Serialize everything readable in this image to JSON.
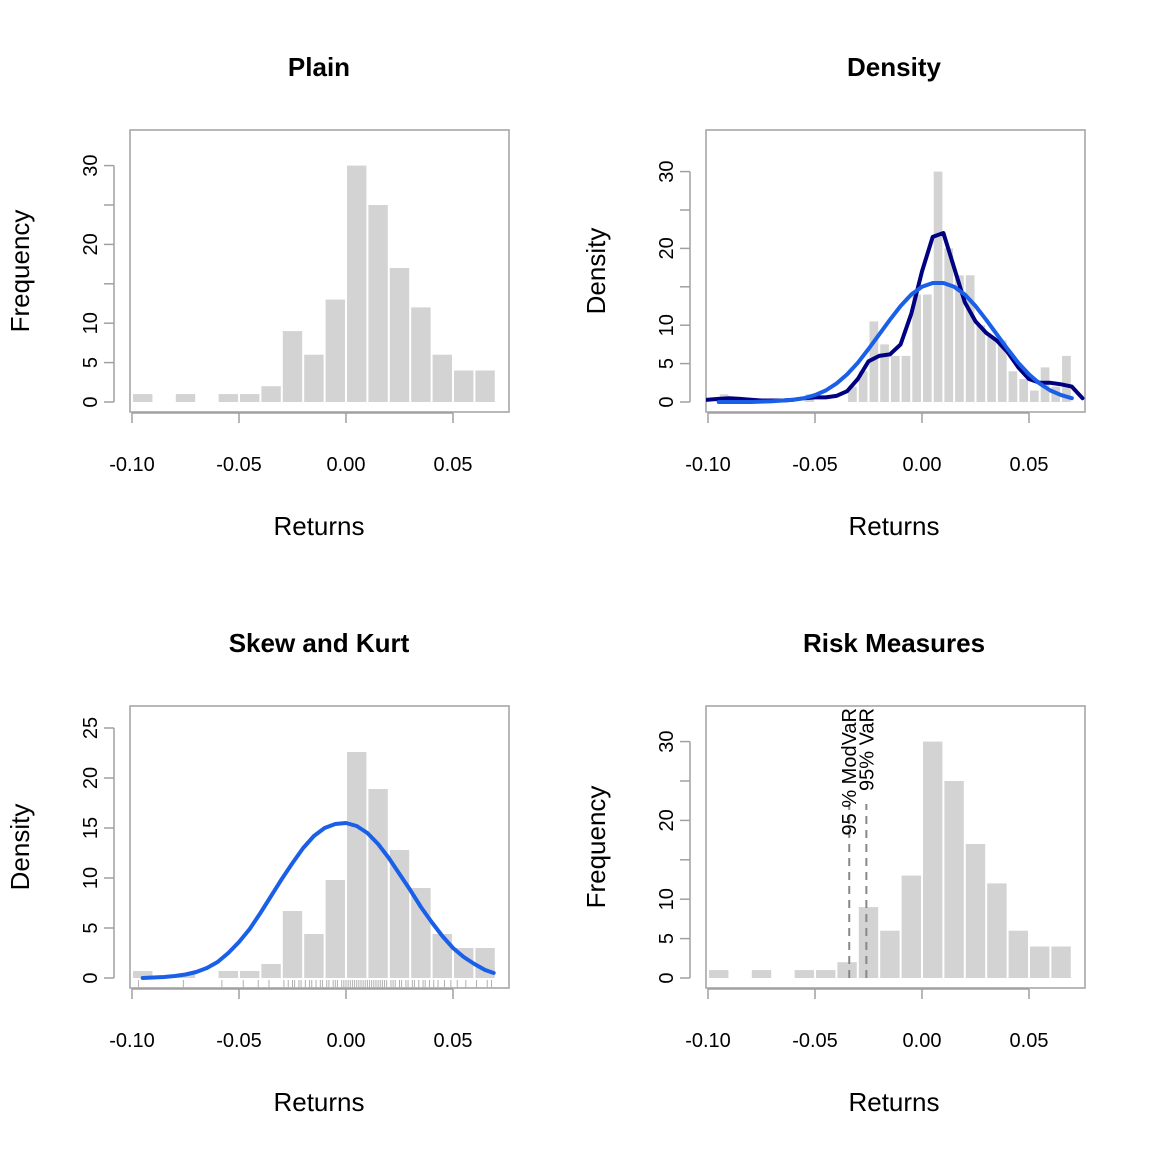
{
  "chart_data": [
    {
      "type": "bar",
      "panel": "plain",
      "title": "Plain",
      "xlabel": "Returns",
      "ylabel": "Frequency",
      "xlim": [
        -0.1,
        0.075
      ],
      "ylim": [
        0,
        35
      ],
      "x_ticks": [
        "-0.10",
        "-0.05",
        "0.00",
        "0.05"
      ],
      "x_tick_values": [
        -0.1,
        -0.05,
        0.0,
        0.05
      ],
      "y_ticks": [
        "0",
        "5",
        "10",
        "20",
        "30"
      ],
      "y_tick_values": [
        0,
        5,
        10,
        20,
        30
      ],
      "y_minor_ticks": [
        15,
        25
      ],
      "bins": [
        {
          "from": -0.1,
          "to": -0.09,
          "value": 1
        },
        {
          "from": -0.09,
          "to": -0.08,
          "value": 0
        },
        {
          "from": -0.08,
          "to": -0.07,
          "value": 1
        },
        {
          "from": -0.07,
          "to": -0.06,
          "value": 0
        },
        {
          "from": -0.06,
          "to": -0.05,
          "value": 1
        },
        {
          "from": -0.05,
          "to": -0.04,
          "value": 1
        },
        {
          "from": -0.04,
          "to": -0.03,
          "value": 2
        },
        {
          "from": -0.03,
          "to": -0.02,
          "value": 9
        },
        {
          "from": -0.02,
          "to": -0.01,
          "value": 6
        },
        {
          "from": -0.01,
          "to": 0.0,
          "value": 13
        },
        {
          "from": 0.0,
          "to": 0.01,
          "value": 30
        },
        {
          "from": 0.01,
          "to": 0.02,
          "value": 25
        },
        {
          "from": 0.02,
          "to": 0.03,
          "value": 17
        },
        {
          "from": 0.03,
          "to": 0.04,
          "value": 12
        },
        {
          "from": 0.04,
          "to": 0.05,
          "value": 6
        },
        {
          "from": 0.05,
          "to": 0.06,
          "value": 4
        },
        {
          "from": 0.06,
          "to": 0.07,
          "value": 4
        }
      ]
    },
    {
      "type": "bar",
      "panel": "density",
      "title": "Density",
      "xlabel": "Returns",
      "ylabel": "Density",
      "xlim": [
        -0.1,
        0.075
      ],
      "ylim": [
        0,
        35
      ],
      "x_ticks": [
        "-0.10",
        "-0.05",
        "0.00",
        "0.05"
      ],
      "x_tick_values": [
        -0.1,
        -0.05,
        0.0,
        0.05
      ],
      "y_ticks": [
        "0",
        "5",
        "10",
        "20",
        "30"
      ],
      "y_tick_values": [
        0,
        5,
        10,
        20,
        30
      ],
      "y_minor_ticks": [
        15,
        25
      ],
      "bins": [
        {
          "from": -0.095,
          "to": -0.09,
          "value": 1
        },
        {
          "from": -0.09,
          "to": -0.085,
          "value": 0
        },
        {
          "from": -0.085,
          "to": -0.08,
          "value": 0
        },
        {
          "from": -0.08,
          "to": -0.075,
          "value": 0
        },
        {
          "from": -0.075,
          "to": -0.07,
          "value": 0
        },
        {
          "from": -0.07,
          "to": -0.065,
          "value": 0
        },
        {
          "from": -0.065,
          "to": -0.06,
          "value": 0
        },
        {
          "from": -0.06,
          "to": -0.055,
          "value": 0
        },
        {
          "from": -0.055,
          "to": -0.05,
          "value": 1
        },
        {
          "from": -0.05,
          "to": -0.045,
          "value": 0
        },
        {
          "from": -0.045,
          "to": -0.04,
          "value": 0
        },
        {
          "from": -0.04,
          "to": -0.035,
          "value": 0
        },
        {
          "from": -0.035,
          "to": -0.03,
          "value": 2
        },
        {
          "from": -0.03,
          "to": -0.025,
          "value": 4
        },
        {
          "from": -0.025,
          "to": -0.02,
          "value": 10.5
        },
        {
          "from": -0.02,
          "to": -0.015,
          "value": 7.5
        },
        {
          "from": -0.015,
          "to": -0.01,
          "value": 6
        },
        {
          "from": -0.01,
          "to": -0.005,
          "value": 6
        },
        {
          "from": -0.005,
          "to": 0.0,
          "value": 14
        },
        {
          "from": 0.0,
          "to": 0.005,
          "value": 14
        },
        {
          "from": 0.005,
          "to": 0.01,
          "value": 30
        },
        {
          "from": 0.01,
          "to": 0.015,
          "value": 20
        },
        {
          "from": 0.015,
          "to": 0.02,
          "value": 16.5
        },
        {
          "from": 0.02,
          "to": 0.025,
          "value": 16.5
        },
        {
          "from": 0.025,
          "to": 0.03,
          "value": 10
        },
        {
          "from": 0.03,
          "to": 0.035,
          "value": 8.5
        },
        {
          "from": 0.035,
          "to": 0.04,
          "value": 8
        },
        {
          "from": 0.04,
          "to": 0.045,
          "value": 4
        },
        {
          "from": 0.045,
          "to": 0.05,
          "value": 3
        },
        {
          "from": 0.05,
          "to": 0.055,
          "value": 1.5
        },
        {
          "from": 0.055,
          "to": 0.06,
          "value": 4.5
        },
        {
          "from": 0.06,
          "to": 0.065,
          "value": 2
        },
        {
          "from": 0.065,
          "to": 0.07,
          "value": 6
        }
      ],
      "series": [
        {
          "color": "#000080",
          "x": [
            -0.105,
            -0.095,
            -0.09,
            -0.085,
            -0.08,
            -0.075,
            -0.07,
            -0.065,
            -0.06,
            -0.055,
            -0.05,
            -0.045,
            -0.04,
            -0.035,
            -0.03,
            -0.025,
            -0.02,
            -0.015,
            -0.01,
            -0.005,
            0.0,
            0.005,
            0.01,
            0.015,
            0.02,
            0.025,
            0.03,
            0.035,
            0.04,
            0.045,
            0.05,
            0.055,
            0.06,
            0.065,
            0.07,
            0.075
          ],
          "values": [
            0.2,
            0.4,
            0.5,
            0.4,
            0.3,
            0.2,
            0.2,
            0.2,
            0.3,
            0.5,
            0.6,
            0.6,
            0.8,
            1.4,
            3.0,
            5.3,
            6.0,
            6.2,
            7.5,
            11.5,
            17.0,
            21.5,
            22.0,
            17.5,
            13.0,
            10.5,
            9.0,
            8.0,
            6.5,
            4.5,
            3.0,
            2.5,
            2.5,
            2.3,
            2.0,
            0.5
          ]
        },
        {
          "color": "#1a5fe8",
          "x": [
            -0.095,
            -0.09,
            -0.085,
            -0.08,
            -0.075,
            -0.07,
            -0.065,
            -0.06,
            -0.055,
            -0.05,
            -0.045,
            -0.04,
            -0.035,
            -0.03,
            -0.025,
            -0.02,
            -0.015,
            -0.01,
            -0.005,
            0.0,
            0.005,
            0.01,
            0.015,
            0.02,
            0.025,
            0.03,
            0.035,
            0.04,
            0.045,
            0.05,
            0.055,
            0.06,
            0.065,
            0.07
          ],
          "values": [
            0.0,
            0.0,
            0.0,
            0.0,
            0.05,
            0.1,
            0.2,
            0.3,
            0.5,
            0.9,
            1.5,
            2.4,
            3.6,
            5.1,
            6.9,
            8.8,
            10.7,
            12.5,
            14.0,
            15.0,
            15.5,
            15.5,
            15.0,
            14.0,
            12.5,
            10.7,
            8.8,
            6.9,
            5.1,
            3.6,
            2.4,
            1.5,
            0.9,
            0.5
          ]
        }
      ]
    },
    {
      "type": "bar",
      "panel": "skew-kurt",
      "title": "Skew and Kurt",
      "xlabel": "Returns",
      "ylabel": "Density",
      "xlim": [
        -0.1,
        0.075
      ],
      "ylim": [
        0,
        27
      ],
      "x_ticks": [
        "-0.10",
        "-0.05",
        "0.00",
        "0.05"
      ],
      "x_tick_values": [
        -0.1,
        -0.05,
        0.0,
        0.05
      ],
      "y_ticks": [
        "0",
        "5",
        "10",
        "15",
        "20",
        "25"
      ],
      "y_tick_values": [
        0,
        5,
        10,
        15,
        20,
        25
      ],
      "y_minor_ticks": [],
      "bins": [
        {
          "from": -0.1,
          "to": -0.09,
          "value": 0.7
        },
        {
          "from": -0.09,
          "to": -0.08,
          "value": 0
        },
        {
          "from": -0.08,
          "to": -0.07,
          "value": 0.4
        },
        {
          "from": -0.07,
          "to": -0.06,
          "value": 0
        },
        {
          "from": -0.06,
          "to": -0.05,
          "value": 0.7
        },
        {
          "from": -0.05,
          "to": -0.04,
          "value": 0.7
        },
        {
          "from": -0.04,
          "to": -0.03,
          "value": 1.4
        },
        {
          "from": -0.03,
          "to": -0.02,
          "value": 6.7
        },
        {
          "from": -0.02,
          "to": -0.01,
          "value": 4.4
        },
        {
          "from": -0.01,
          "to": 0.0,
          "value": 9.8
        },
        {
          "from": 0.0,
          "to": 0.01,
          "value": 22.6
        },
        {
          "from": 0.01,
          "to": 0.02,
          "value": 18.9
        },
        {
          "from": 0.02,
          "to": 0.03,
          "value": 12.8
        },
        {
          "from": 0.03,
          "to": 0.04,
          "value": 9.0
        },
        {
          "from": 0.04,
          "to": 0.05,
          "value": 4.4
        },
        {
          "from": 0.05,
          "to": 0.06,
          "value": 3.0
        },
        {
          "from": 0.06,
          "to": 0.07,
          "value": 3.0
        }
      ],
      "series": [
        {
          "color": "#1a5fe8",
          "x": [
            -0.095,
            -0.09,
            -0.085,
            -0.08,
            -0.075,
            -0.07,
            -0.065,
            -0.06,
            -0.055,
            -0.05,
            -0.045,
            -0.04,
            -0.035,
            -0.03,
            -0.025,
            -0.02,
            -0.015,
            -0.01,
            -0.005,
            0.0,
            0.005,
            0.01,
            0.015,
            0.02,
            0.025,
            0.03,
            0.035,
            0.04,
            0.045,
            0.05,
            0.055,
            0.06,
            0.065,
            0.069
          ],
          "values": [
            0.0,
            0.05,
            0.1,
            0.2,
            0.35,
            0.6,
            1.0,
            1.6,
            2.5,
            3.6,
            4.9,
            6.5,
            8.2,
            9.9,
            11.5,
            13.0,
            14.2,
            15.0,
            15.4,
            15.5,
            15.2,
            14.5,
            13.4,
            12.0,
            10.4,
            8.8,
            7.1,
            5.6,
            4.2,
            3.0,
            2.1,
            1.4,
            0.8,
            0.5
          ]
        }
      ],
      "rug": [
        -0.097,
        -0.076,
        -0.058,
        -0.048,
        -0.041,
        -0.036,
        -0.029,
        -0.027,
        -0.025,
        -0.024,
        -0.022,
        -0.021,
        -0.019,
        -0.017,
        -0.016,
        -0.014,
        -0.012,
        -0.011,
        -0.009,
        -0.008,
        -0.006,
        -0.005,
        -0.004,
        -0.002,
        -0.001,
        0.0,
        0.001,
        0.002,
        0.003,
        0.004,
        0.005,
        0.006,
        0.007,
        0.008,
        0.009,
        0.01,
        0.011,
        0.012,
        0.013,
        0.014,
        0.015,
        0.016,
        0.017,
        0.018,
        0.019,
        0.021,
        0.022,
        0.023,
        0.025,
        0.026,
        0.028,
        0.029,
        0.031,
        0.032,
        0.034,
        0.036,
        0.037,
        0.039,
        0.041,
        0.043,
        0.046,
        0.049,
        0.052,
        0.056,
        0.061,
        0.066,
        0.068
      ]
    },
    {
      "type": "bar",
      "panel": "risk",
      "title": "Risk Measures",
      "xlabel": "Returns",
      "ylabel": "Frequency",
      "xlim": [
        -0.1,
        0.075
      ],
      "ylim": [
        0,
        35
      ],
      "x_ticks": [
        "-0.10",
        "-0.05",
        "0.00",
        "0.05"
      ],
      "x_tick_values": [
        -0.1,
        -0.05,
        0.0,
        0.05
      ],
      "y_ticks": [
        "0",
        "5",
        "10",
        "20",
        "30"
      ],
      "y_tick_values": [
        0,
        5,
        10,
        20,
        30
      ],
      "y_minor_ticks": [
        15,
        25
      ],
      "bins": [
        {
          "from": -0.1,
          "to": -0.09,
          "value": 1
        },
        {
          "from": -0.09,
          "to": -0.08,
          "value": 0
        },
        {
          "from": -0.08,
          "to": -0.07,
          "value": 1
        },
        {
          "from": -0.07,
          "to": -0.06,
          "value": 0
        },
        {
          "from": -0.06,
          "to": -0.05,
          "value": 1
        },
        {
          "from": -0.05,
          "to": -0.04,
          "value": 1
        },
        {
          "from": -0.04,
          "to": -0.03,
          "value": 2
        },
        {
          "from": -0.03,
          "to": -0.02,
          "value": 9
        },
        {
          "from": -0.02,
          "to": -0.01,
          "value": 6
        },
        {
          "from": -0.01,
          "to": 0.0,
          "value": 13
        },
        {
          "from": 0.0,
          "to": 0.01,
          "value": 30
        },
        {
          "from": 0.01,
          "to": 0.02,
          "value": 25
        },
        {
          "from": 0.02,
          "to": 0.03,
          "value": 17
        },
        {
          "from": 0.03,
          "to": 0.04,
          "value": 12
        },
        {
          "from": 0.04,
          "to": 0.05,
          "value": 6
        },
        {
          "from": 0.05,
          "to": 0.06,
          "value": 4
        },
        {
          "from": 0.06,
          "to": 0.07,
          "value": 4
        }
      ],
      "vlines": [
        {
          "x": -0.034,
          "label": "95 % ModVaR"
        },
        {
          "x": -0.026,
          "label": "95% VaR"
        }
      ]
    }
  ]
}
